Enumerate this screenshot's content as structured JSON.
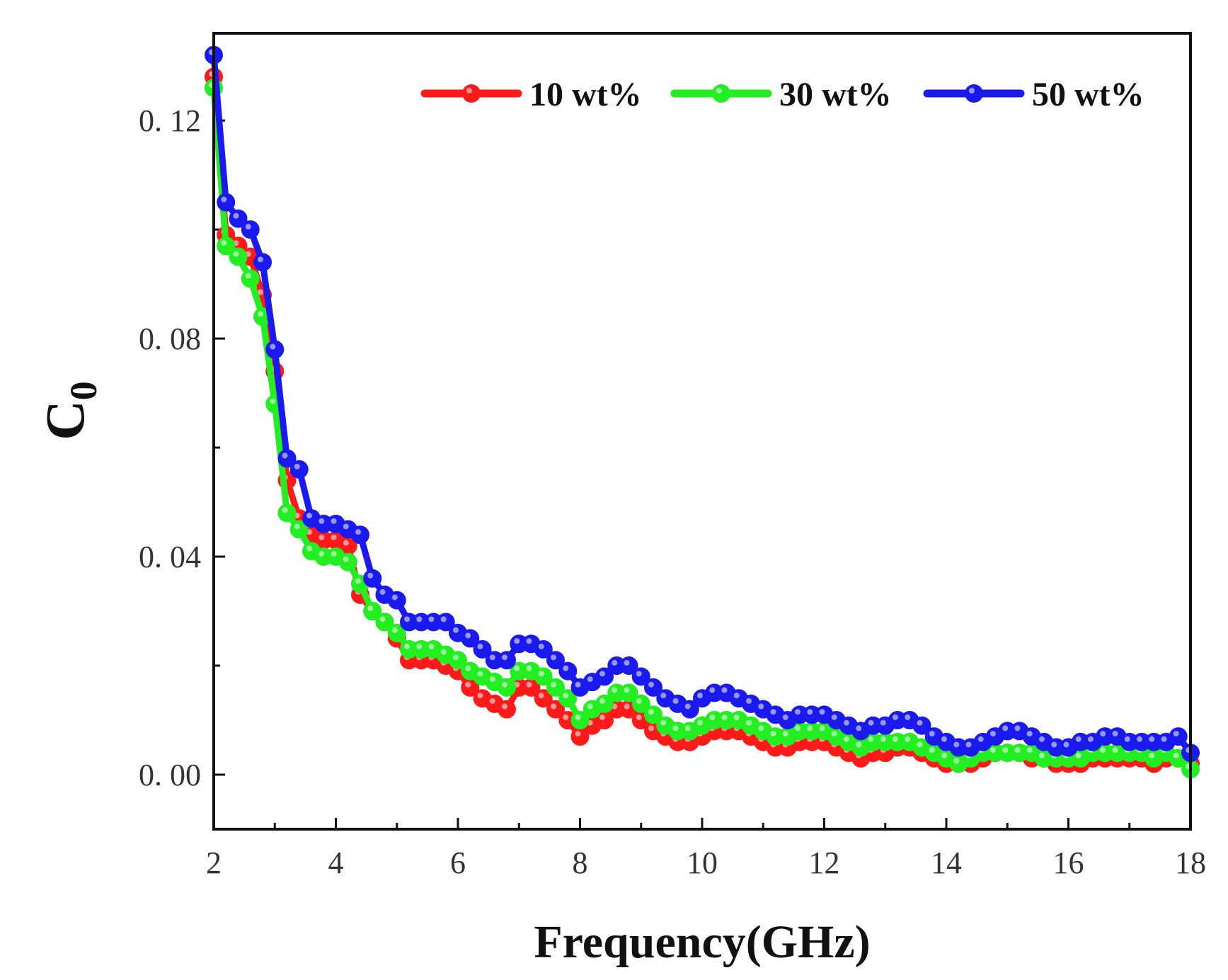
{
  "chart_data": {
    "type": "line",
    "title": "",
    "xlabel": "Frequency(GHz)",
    "ylabel_main": "C",
    "ylabel_sub": "0",
    "xlim": [
      2,
      18
    ],
    "ylim": [
      -0.01,
      0.136
    ],
    "xticks": [
      2,
      4,
      6,
      8,
      10,
      12,
      14,
      16,
      18
    ],
    "yticks": [
      0.0,
      0.04,
      0.08,
      0.12
    ],
    "ytick_labels": [
      "0. 00",
      "0. 04",
      "0. 08",
      "0. 12"
    ],
    "xtick_labels": [
      "2",
      "4",
      "6",
      "8",
      "10",
      "12",
      "14",
      "16",
      "18"
    ],
    "grid": false,
    "legend_position": "top-right",
    "x": [
      2.0,
      2.2,
      2.4,
      2.6,
      2.8,
      3.0,
      3.2,
      3.4,
      3.6,
      3.8,
      4.0,
      4.2,
      4.4,
      4.6,
      4.8,
      5.0,
      5.2,
      5.4,
      5.6,
      5.8,
      6.0,
      6.2,
      6.4,
      6.6,
      6.8,
      7.0,
      7.2,
      7.4,
      7.6,
      7.8,
      8.0,
      8.2,
      8.4,
      8.6,
      8.8,
      9.0,
      9.2,
      9.4,
      9.6,
      9.8,
      10.0,
      10.2,
      10.4,
      10.6,
      10.8,
      11.0,
      11.2,
      11.4,
      11.6,
      11.8,
      12.0,
      12.2,
      12.4,
      12.6,
      12.8,
      13.0,
      13.2,
      13.4,
      13.6,
      13.8,
      14.0,
      14.2,
      14.4,
      14.6,
      14.8,
      15.0,
      15.2,
      15.4,
      15.6,
      15.8,
      16.0,
      16.2,
      16.4,
      16.6,
      16.8,
      17.0,
      17.2,
      17.4,
      17.6,
      17.8,
      18.0
    ],
    "series": [
      {
        "name": "10 wt%",
        "color": "#ff1a1a",
        "values": [
          0.128,
          0.099,
          0.097,
          0.095,
          0.088,
          0.074,
          0.054,
          0.047,
          0.044,
          0.043,
          0.043,
          0.042,
          0.033,
          0.03,
          0.028,
          0.025,
          0.021,
          0.021,
          0.021,
          0.02,
          0.019,
          0.016,
          0.014,
          0.013,
          0.012,
          0.016,
          0.016,
          0.014,
          0.012,
          0.01,
          0.007,
          0.009,
          0.01,
          0.012,
          0.012,
          0.01,
          0.008,
          0.007,
          0.006,
          0.006,
          0.007,
          0.008,
          0.008,
          0.008,
          0.007,
          0.006,
          0.005,
          0.005,
          0.006,
          0.006,
          0.006,
          0.005,
          0.004,
          0.003,
          0.004,
          0.004,
          0.005,
          0.005,
          0.004,
          0.003,
          0.002,
          0.002,
          0.002,
          0.003,
          0.004,
          0.004,
          0.004,
          0.003,
          0.003,
          0.002,
          0.002,
          0.002,
          0.003,
          0.003,
          0.003,
          0.003,
          0.003,
          0.002,
          0.003,
          0.003,
          0.002
        ]
      },
      {
        "name": "30 wt%",
        "color": "#22ee22",
        "values": [
          0.126,
          0.097,
          0.095,
          0.091,
          0.084,
          0.068,
          0.048,
          0.045,
          0.041,
          0.04,
          0.04,
          0.039,
          0.035,
          0.03,
          0.028,
          0.026,
          0.023,
          0.023,
          0.023,
          0.022,
          0.021,
          0.019,
          0.018,
          0.017,
          0.016,
          0.019,
          0.019,
          0.018,
          0.016,
          0.014,
          0.01,
          0.012,
          0.013,
          0.015,
          0.015,
          0.013,
          0.011,
          0.009,
          0.008,
          0.008,
          0.009,
          0.01,
          0.01,
          0.01,
          0.009,
          0.008,
          0.007,
          0.007,
          0.008,
          0.008,
          0.008,
          0.007,
          0.006,
          0.005,
          0.006,
          0.006,
          0.006,
          0.006,
          0.005,
          0.004,
          0.003,
          0.002,
          0.003,
          0.004,
          0.004,
          0.004,
          0.004,
          0.004,
          0.003,
          0.003,
          0.003,
          0.003,
          0.004,
          0.004,
          0.004,
          0.004,
          0.004,
          0.003,
          0.004,
          0.003,
          0.001
        ]
      },
      {
        "name": "50 wt%",
        "color": "#1a1aee",
        "values": [
          0.132,
          0.105,
          0.102,
          0.1,
          0.094,
          0.078,
          0.058,
          0.056,
          0.047,
          0.046,
          0.046,
          0.045,
          0.044,
          0.036,
          0.033,
          0.032,
          0.028,
          0.028,
          0.028,
          0.028,
          0.026,
          0.025,
          0.023,
          0.021,
          0.021,
          0.024,
          0.024,
          0.023,
          0.021,
          0.019,
          0.016,
          0.017,
          0.018,
          0.02,
          0.02,
          0.018,
          0.016,
          0.014,
          0.013,
          0.012,
          0.014,
          0.015,
          0.015,
          0.014,
          0.013,
          0.012,
          0.011,
          0.01,
          0.011,
          0.011,
          0.011,
          0.01,
          0.009,
          0.008,
          0.009,
          0.009,
          0.01,
          0.01,
          0.009,
          0.007,
          0.006,
          0.005,
          0.005,
          0.006,
          0.007,
          0.008,
          0.008,
          0.007,
          0.006,
          0.005,
          0.005,
          0.006,
          0.006,
          0.007,
          0.007,
          0.006,
          0.006,
          0.006,
          0.006,
          0.007,
          0.004
        ]
      }
    ]
  }
}
